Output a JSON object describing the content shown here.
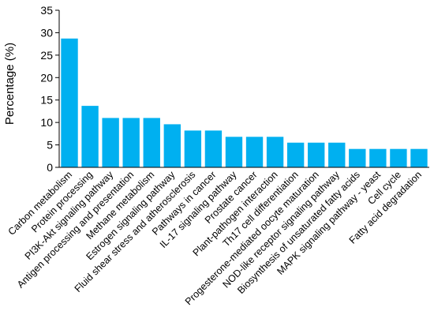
{
  "chart_data": {
    "type": "bar",
    "title": "",
    "xlabel": "",
    "ylabel": "Percentage (%)",
    "ylim": [
      0,
      35
    ],
    "yticks": [
      0,
      5,
      10,
      15,
      20,
      25,
      30,
      35
    ],
    "grid": false,
    "bar_color": "#00B0F0",
    "categories": [
      "Carbon metabolism",
      "Protein processing",
      "PI3K-Akt signaling pathway",
      "Antigen processing and presentation",
      "Methane metabolism",
      "Estrogen signaling pathway",
      "Fluid shear stress and atherosclerosis",
      "Pathways in cancer",
      "IL-17 signaling pathway",
      "Prostate cancer",
      "Plant-pathogen interaction",
      "Th17 cell differentiation",
      "Progesterone-mediated oocyte maturation",
      "NOD-like receptor signaling pathway",
      "Biosynthesis of unsaturated fatty acids",
      "MAPK signaling pathway - yeast",
      "Cell cycle",
      "Fatty acid degradation"
    ],
    "values": [
      28.7,
      13.7,
      11.0,
      11.0,
      11.0,
      9.6,
      8.2,
      8.2,
      6.8,
      6.8,
      6.8,
      5.5,
      5.5,
      5.5,
      4.1,
      4.1,
      4.1,
      4.1
    ]
  }
}
